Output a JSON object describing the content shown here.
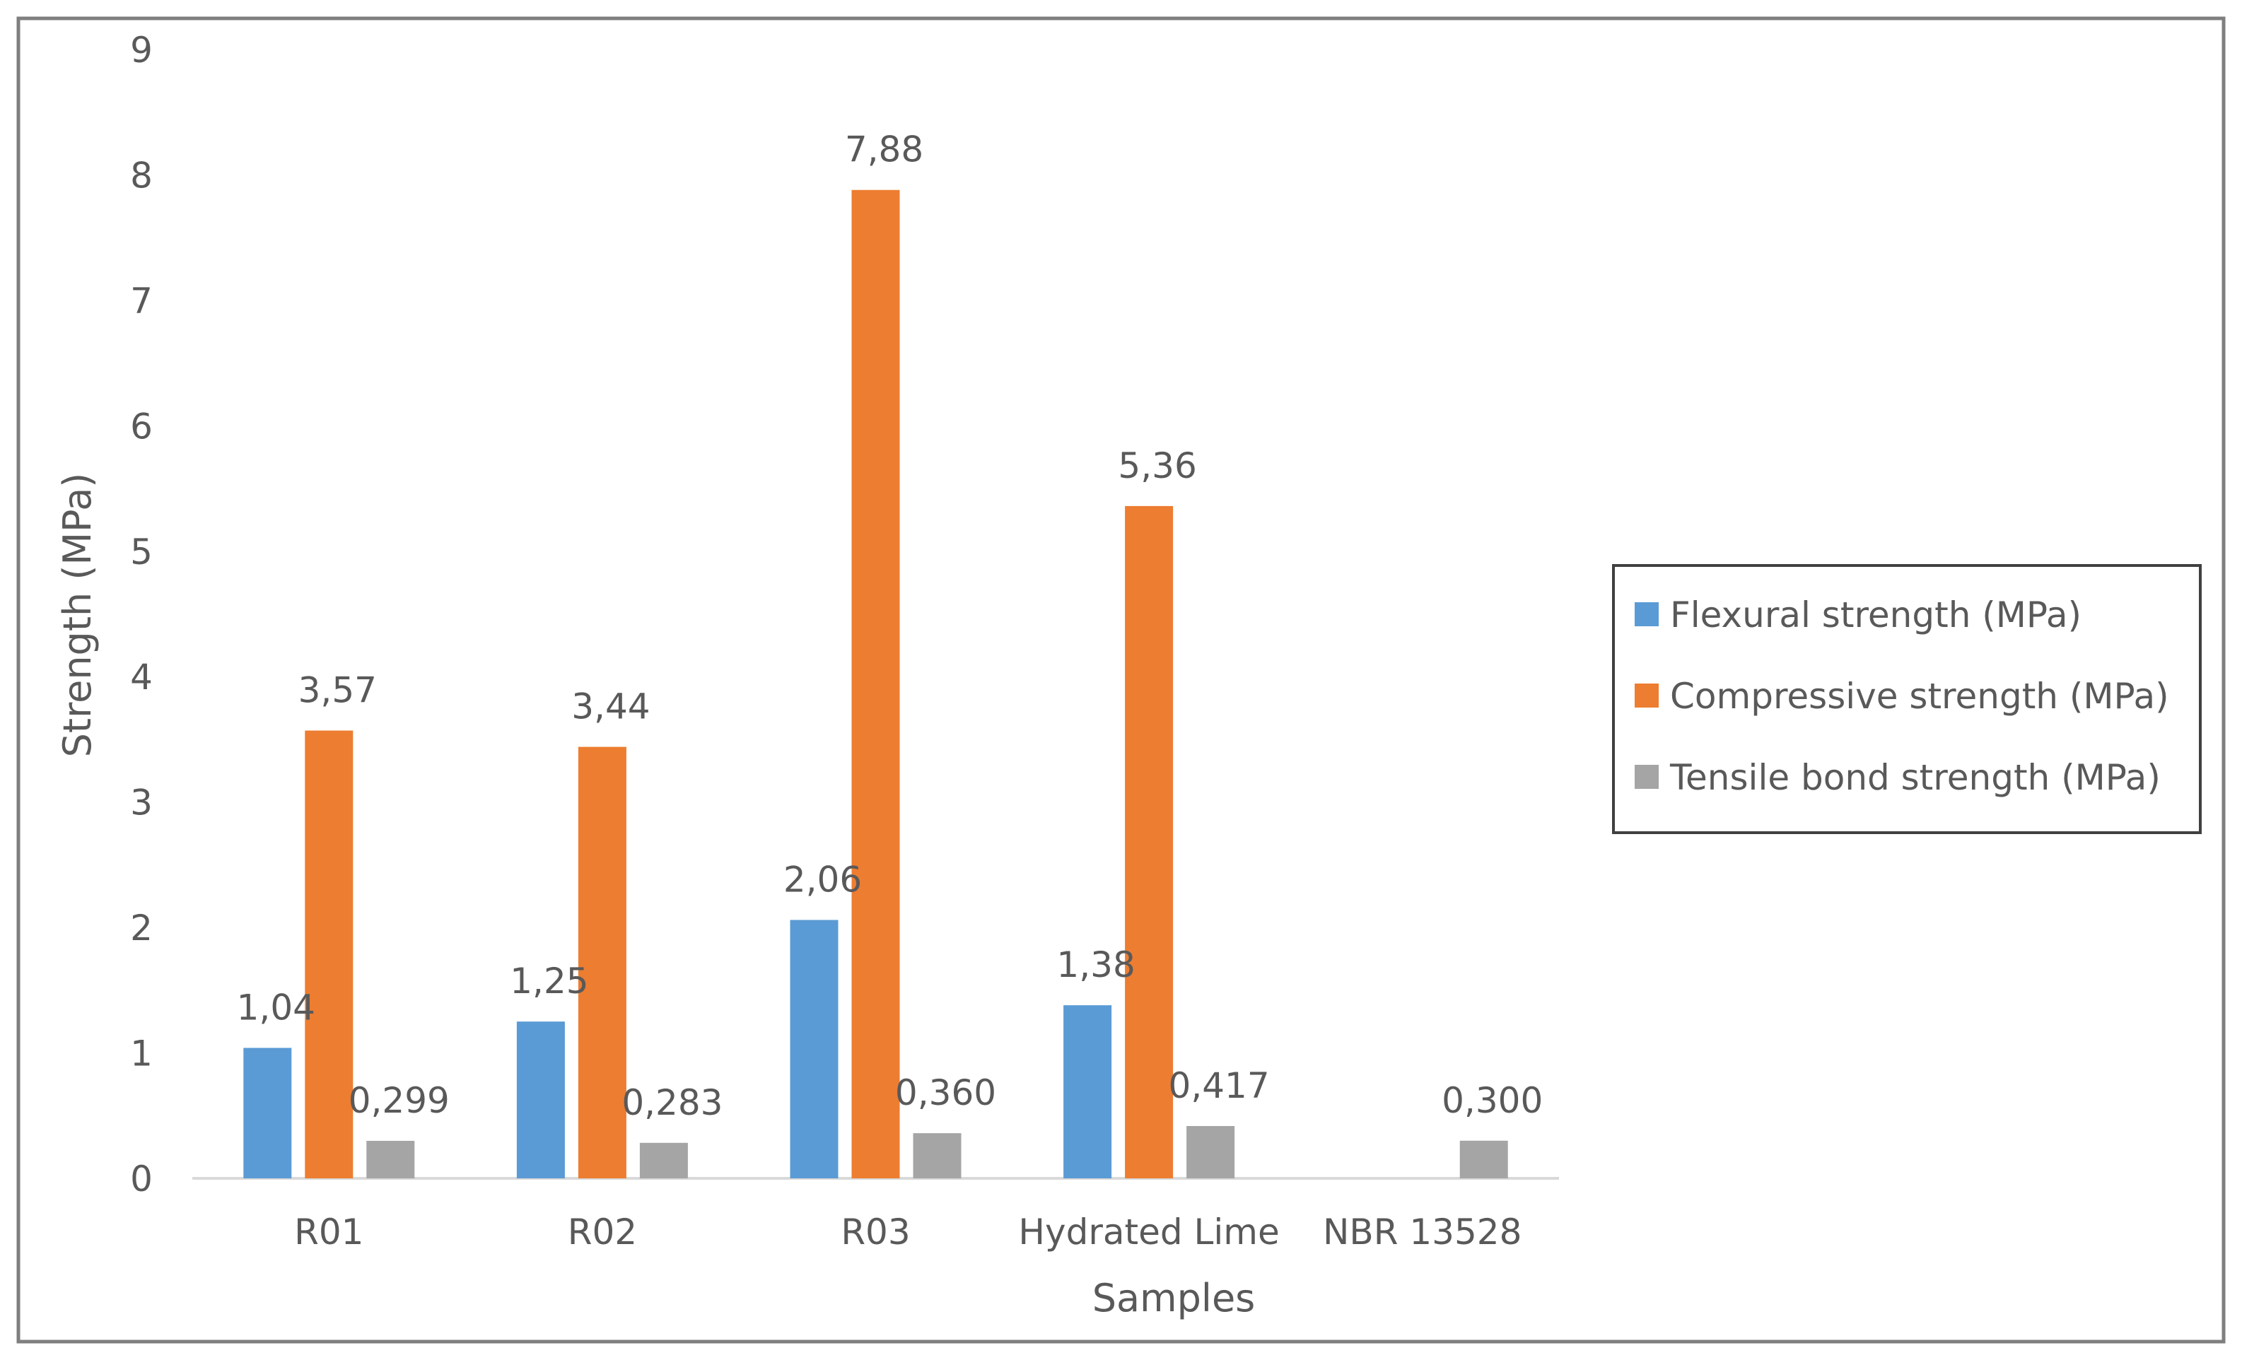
{
  "chart_data": {
    "type": "bar",
    "title": "",
    "xlabel": "Samples",
    "ylabel": "Strength (MPa)",
    "ylim": [
      0,
      9
    ],
    "yticks": [
      "0",
      "1",
      "2",
      "3",
      "4",
      "5",
      "6",
      "7",
      "8",
      "9"
    ],
    "grid": false,
    "legend_position": "right",
    "categories": [
      "R01",
      "R02",
      "R03",
      "Hydrated Lime",
      "NBR 13528"
    ],
    "series": [
      {
        "name": "Flexural strength  (MPa)",
        "color": "#5b9bd5",
        "values": [
          1.04,
          1.25,
          2.06,
          1.38,
          null
        ],
        "labels": [
          "1,04",
          "1,25",
          "2,06",
          "1,38",
          ""
        ]
      },
      {
        "name": "Compressive strength  (MPa)",
        "color": "#ed7d31",
        "values": [
          3.57,
          3.44,
          7.88,
          5.36,
          null
        ],
        "labels": [
          "3,57",
          "3,44",
          "7,88",
          "5,36",
          ""
        ]
      },
      {
        "name": "Tensile bond strength (MPa)",
        "color": "#a5a5a5",
        "values": [
          0.299,
          0.283,
          0.36,
          0.417,
          0.3
        ],
        "labels": [
          "0,299",
          "0,283",
          "0,360",
          "0,417",
          "0,300"
        ]
      }
    ]
  }
}
